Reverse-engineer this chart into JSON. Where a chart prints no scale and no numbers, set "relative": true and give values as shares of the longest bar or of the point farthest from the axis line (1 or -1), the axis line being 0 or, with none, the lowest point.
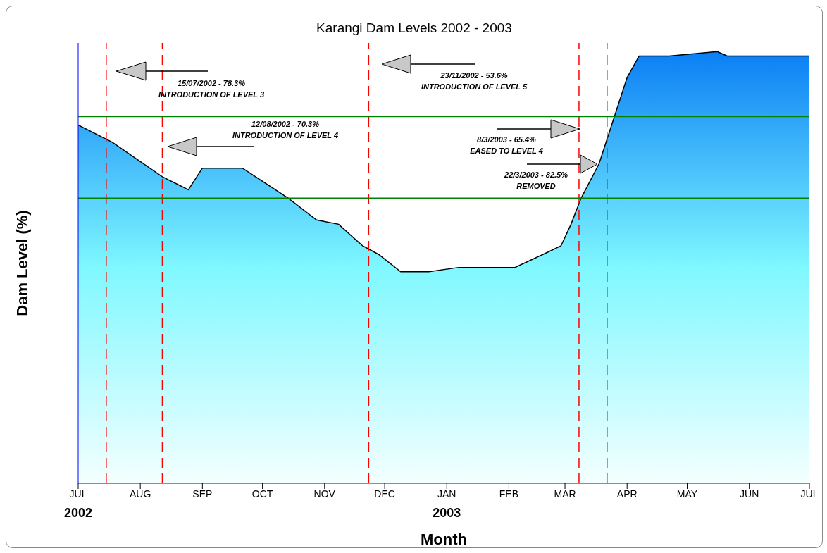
{
  "chart_data": {
    "type": "area",
    "title": "Karangi Dam Levels 2002 - 2003",
    "xlabel": "Month",
    "ylabel": "Dam Level (%)",
    "relative": true,
    "x": [
      "2002-07-01",
      "2002-07-18",
      "2002-08-12",
      "2002-08-25",
      "2002-09-01",
      "2002-09-12",
      "2002-09-21",
      "2002-10-14",
      "2002-10-28",
      "2002-11-08",
      "2002-11-20",
      "2002-11-28",
      "2002-12-09",
      "2002-12-23",
      "2003-01-07",
      "2003-01-24",
      "2003-02-04",
      "2003-02-18",
      "2003-02-27",
      "2003-03-04",
      "2003-03-09",
      "2003-03-18",
      "2003-03-25",
      "2003-04-01",
      "2003-04-07",
      "2003-04-22",
      "2003-05-16",
      "2003-05-21",
      "2003-07-01"
    ],
    "values": [
      0.83,
      0.79,
      0.71,
      0.68,
      0.73,
      0.73,
      0.73,
      0.66,
      0.61,
      0.6,
      0.55,
      0.53,
      0.49,
      0.49,
      0.5,
      0.5,
      0.5,
      0.53,
      0.55,
      0.6,
      0.66,
      0.74,
      0.84,
      0.94,
      0.99,
      0.99,
      1,
      0.99,
      0.99
    ],
    "color": "#0a7ff5",
    "xlim": [
      "2002-07-01",
      "2003-07-01"
    ],
    "xticks": [
      {
        "value": "2002-07-01",
        "label": "JUL\n2002"
      },
      {
        "value": "2002-08-01",
        "label": "AUG"
      },
      {
        "value": "2002-09-01",
        "label": "SEP"
      },
      {
        "value": "2002-10-01",
        "label": "OCT"
      },
      {
        "value": "2002-11-01",
        "label": "NOV"
      },
      {
        "value": "2002-12-01",
        "label": "DEC"
      },
      {
        "value": "2003-01-01",
        "label": "JAN\n2003"
      },
      {
        "value": "2003-02-01",
        "label": "FEB"
      },
      {
        "value": "2003-03-01",
        "label": "MAR"
      },
      {
        "value": "2003-04-01",
        "label": "APR"
      },
      {
        "value": "2003-05-01",
        "label": "MAY"
      },
      {
        "value": "2003-06-01",
        "label": "JUN"
      },
      {
        "value": "2003-07-01",
        "label": "JUL"
      }
    ],
    "tick_labels": "x",
    "grid": false,
    "legend": false,
    "annotations": [
      "15/07/2002  -  78.3%\nINTRODUCTION OF LEVEL 3",
      "12/08/2002  -  70.3%\nINTRODUCTION OF LEVEL 4",
      "23/11/2002  -  53.6%\nINTRODUCTION OF LEVEL 5",
      "8/3/2003  -  65.4%\nEASED TO LEVEL 4",
      "22/3/2003  -  82.5%\nREMOVED"
    ],
    "ref_lines": [
      {
        "axis": "x",
        "value": "2002-07-15",
        "color": "#ff0000",
        "line_style": "dashed"
      },
      {
        "axis": "x",
        "value": "2002-08-12",
        "color": "#ff0000",
        "line_style": "dashed"
      },
      {
        "axis": "x",
        "value": "2002-11-23",
        "color": "#ff0000",
        "line_style": "dashed"
      },
      {
        "axis": "x",
        "value": "2003-03-08",
        "color": "#ff0000",
        "line_style": "dashed"
      },
      {
        "axis": "x",
        "value": "2003-03-22",
        "color": "#ff0000",
        "line_style": "dashed"
      },
      {
        "axis": "y",
        "value": 0.85,
        "color": "#008000",
        "line_style": "solid"
      },
      {
        "axis": "y",
        "value": 0.66,
        "color": "#008000",
        "line_style": "solid"
      }
    ]
  }
}
